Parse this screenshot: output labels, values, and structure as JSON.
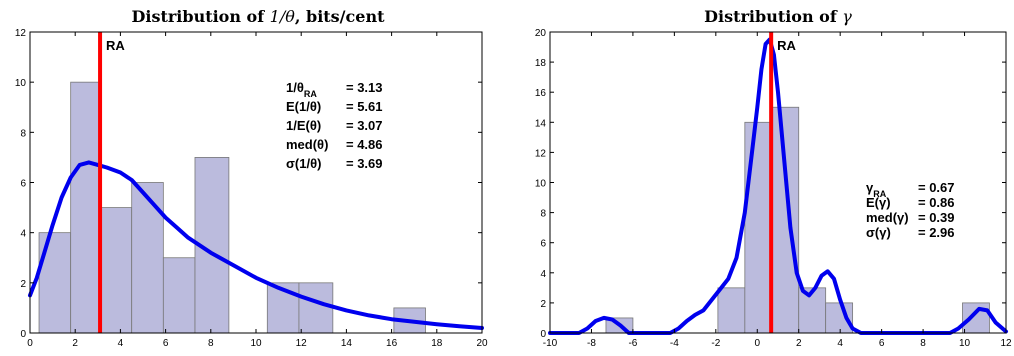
{
  "chart_data": [
    {
      "type": "bar",
      "title_text": "Distribution of ",
      "title_math": "1/θ",
      "title_suffix": ", bits/cent",
      "xlim": [
        0,
        20
      ],
      "ylim": [
        0,
        12
      ],
      "xticks": [
        "0",
        "2",
        "4",
        "6",
        "8",
        "10",
        "12",
        "14",
        "16",
        "18",
        "20"
      ],
      "yticks": [
        "0",
        "2",
        "4",
        "6",
        "8",
        "10",
        "12"
      ],
      "bins": [
        {
          "x0": 0.4,
          "x1": 1.8,
          "y": 4
        },
        {
          "x0": 1.8,
          "x1": 3.1,
          "y": 10
        },
        {
          "x0": 3.1,
          "x1": 4.5,
          "y": 5
        },
        {
          "x0": 4.5,
          "x1": 5.9,
          "y": 6
        },
        {
          "x0": 5.9,
          "x1": 7.3,
          "y": 3
        },
        {
          "x0": 7.3,
          "x1": 8.8,
          "y": 7
        },
        {
          "x0": 10.5,
          "x1": 11.9,
          "y": 2
        },
        {
          "x0": 11.9,
          "x1": 13.4,
          "y": 2
        },
        {
          "x0": 16.1,
          "x1": 17.5,
          "y": 1
        }
      ],
      "curve": [
        [
          0,
          1.5
        ],
        [
          0.3,
          2.2
        ],
        [
          0.6,
          3.1
        ],
        [
          1,
          4.3
        ],
        [
          1.4,
          5.4
        ],
        [
          1.8,
          6.2
        ],
        [
          2.2,
          6.7
        ],
        [
          2.6,
          6.8
        ],
        [
          3,
          6.7
        ],
        [
          3.4,
          6.6
        ],
        [
          4,
          6.4
        ],
        [
          4.5,
          6.1
        ],
        [
          5,
          5.6
        ],
        [
          5.5,
          5.1
        ],
        [
          6,
          4.6
        ],
        [
          6.5,
          4.2
        ],
        [
          7,
          3.8
        ],
        [
          7.5,
          3.5
        ],
        [
          8,
          3.2
        ],
        [
          8.5,
          2.95
        ],
        [
          9,
          2.7
        ],
        [
          10,
          2.2
        ],
        [
          11,
          1.8
        ],
        [
          12,
          1.45
        ],
        [
          13,
          1.15
        ],
        [
          14,
          0.9
        ],
        [
          15,
          0.7
        ],
        [
          16,
          0.55
        ],
        [
          17,
          0.45
        ],
        [
          18,
          0.35
        ],
        [
          19,
          0.27
        ],
        [
          20,
          0.2
        ]
      ],
      "ra_x": 3.1,
      "ra_label": "RA",
      "stats": [
        {
          "label": "1/θ",
          "sub": "RA",
          "value": "= 3.13"
        },
        {
          "label": "E(1/θ)",
          "sub": "",
          "value": "= 5.61"
        },
        {
          "label": "1/E(θ)",
          "sub": "",
          "value": "= 3.07"
        },
        {
          "label": "med(θ)",
          "sub": "",
          "value": "= 4.86"
        },
        {
          "label": "σ(1/θ)",
          "sub": "",
          "value": "= 3.69"
        }
      ]
    },
    {
      "type": "bar",
      "title_text": "Distribution of ",
      "title_math": "γ",
      "title_suffix": "",
      "xlim": [
        -10,
        12
      ],
      "ylim": [
        0,
        20
      ],
      "xticks": [
        "-10",
        "-8",
        "-6",
        "-4",
        "-2",
        "0",
        "2",
        "4",
        "6",
        "8",
        "10",
        "12"
      ],
      "yticks": [
        "0",
        "2",
        "4",
        "6",
        "8",
        "10",
        "12",
        "14",
        "16",
        "18",
        "20"
      ],
      "bins": [
        {
          "x0": -7.3,
          "x1": -6.0,
          "y": 1
        },
        {
          "x0": -1.9,
          "x1": -0.6,
          "y": 3
        },
        {
          "x0": -0.6,
          "x1": 0.7,
          "y": 14
        },
        {
          "x0": 0.7,
          "x1": 2.0,
          "y": 15
        },
        {
          "x0": 2.0,
          "x1": 3.3,
          "y": 3
        },
        {
          "x0": 3.3,
          "x1": 4.6,
          "y": 2
        },
        {
          "x0": 9.9,
          "x1": 11.2,
          "y": 2
        }
      ],
      "curve": [
        [
          -10,
          0
        ],
        [
          -8.6,
          0
        ],
        [
          -8.2,
          0.3
        ],
        [
          -7.8,
          0.8
        ],
        [
          -7.4,
          1
        ],
        [
          -7,
          0.9
        ],
        [
          -6.6,
          0.5
        ],
        [
          -6.2,
          0
        ],
        [
          -4.2,
          0
        ],
        [
          -3.8,
          0.3
        ],
        [
          -3.4,
          0.8
        ],
        [
          -3,
          1.2
        ],
        [
          -2.6,
          1.5
        ],
        [
          -2.2,
          2.2
        ],
        [
          -1.8,
          2.9
        ],
        [
          -1.4,
          3.6
        ],
        [
          -1,
          5
        ],
        [
          -0.6,
          8
        ],
        [
          -0.3,
          11.5
        ],
        [
          0,
          15
        ],
        [
          0.2,
          17.5
        ],
        [
          0.4,
          19.2
        ],
        [
          0.6,
          19.5
        ],
        [
          0.8,
          18.5
        ],
        [
          1,
          16
        ],
        [
          1.3,
          11.5
        ],
        [
          1.6,
          7
        ],
        [
          1.9,
          4
        ],
        [
          2.2,
          2.8
        ],
        [
          2.5,
          2.5
        ],
        [
          2.8,
          3
        ],
        [
          3.1,
          3.8
        ],
        [
          3.4,
          4.1
        ],
        [
          3.7,
          3.6
        ],
        [
          4,
          2.2
        ],
        [
          4.3,
          1
        ],
        [
          4.6,
          0.3
        ],
        [
          5,
          0
        ],
        [
          9.3,
          0
        ],
        [
          9.7,
          0.3
        ],
        [
          10.2,
          0.9
        ],
        [
          10.7,
          1.6
        ],
        [
          11.1,
          1.5
        ],
        [
          11.5,
          0.7
        ],
        [
          12,
          0.1
        ]
      ],
      "ra_x": 0.67,
      "ra_label": "RA",
      "stats": [
        {
          "label": "γ",
          "sub": "RA",
          "value": "= 0.67"
        },
        {
          "label": "E(γ)",
          "sub": "",
          "value": "= 0.86"
        },
        {
          "label": "med(γ)",
          "sub": "",
          "value": "= 0.39"
        },
        {
          "label": "σ(γ)",
          "sub": "",
          "value": "= 2.96"
        }
      ]
    }
  ],
  "colors": {
    "bar_fill": "#bbbbdd",
    "bar_stroke": "#777777",
    "curve": "#0000ee",
    "ra_line": "#ff0000",
    "axis": "#000000"
  }
}
